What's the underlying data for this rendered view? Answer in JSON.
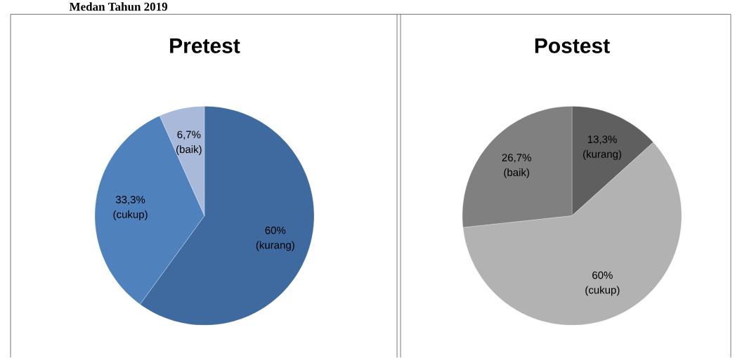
{
  "chart_data": [
    {
      "type": "pie",
      "title": "Pretest",
      "annotations": [
        "Medan Tahun 2019"
      ],
      "categories": [
        "(kurang)",
        "(cukup)",
        "(baik)"
      ],
      "values": [
        60,
        33.3,
        6.7
      ],
      "colors": [
        "#3e6aa0",
        "#4f81bd",
        "#a9b9d9"
      ],
      "value_labels": [
        "60%",
        "33,3%",
        "6,7%"
      ]
    },
    {
      "type": "pie",
      "title": "Postest",
      "categories": [
        "(kurang)",
        "(cukup)",
        "(baik)"
      ],
      "values": [
        13.3,
        60,
        26.7
      ],
      "colors": [
        "#5f5f5f",
        "#b2b2b2",
        "#808080"
      ],
      "value_labels": [
        "13,3%",
        "60%",
        "26,7%"
      ]
    }
  ]
}
